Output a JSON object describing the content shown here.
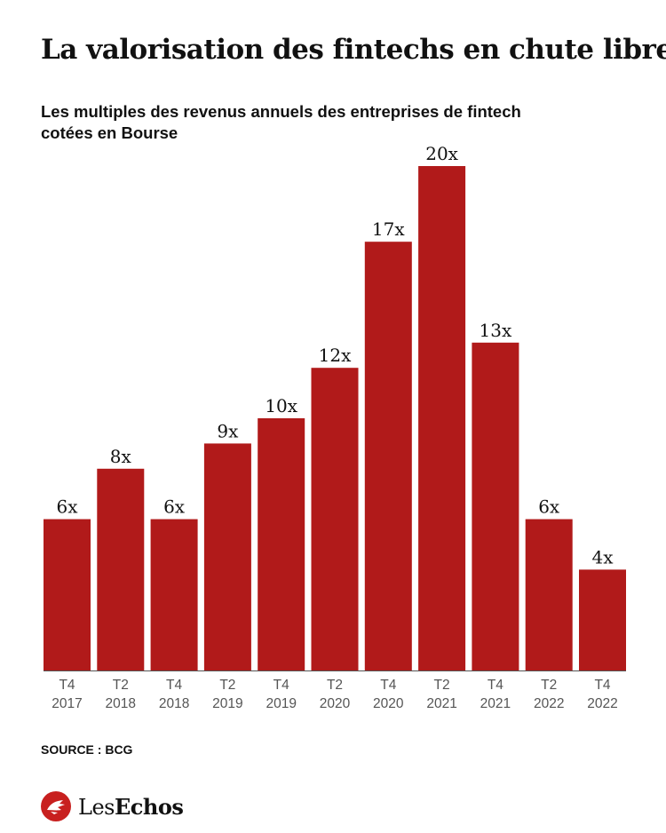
{
  "title": "La valorisation des fintechs en chute libre",
  "subtitle": "Les multiples des revenus annuels des entreprises de fintech cotées en Bourse",
  "source": "SOURCE : BCG",
  "logo": {
    "text": "LesEchos",
    "icon": "les-echos-bird-icon"
  },
  "colors": {
    "bar": "#b11a1a",
    "baseline": "#555555",
    "logo": "#c8201f"
  },
  "chart_data": {
    "type": "bar",
    "categories": [
      [
        "T4",
        "2017"
      ],
      [
        "T2",
        "2018"
      ],
      [
        "T4",
        "2018"
      ],
      [
        "T2",
        "2019"
      ],
      [
        "T4",
        "2019"
      ],
      [
        "T2",
        "2020"
      ],
      [
        "T4",
        "2020"
      ],
      [
        "T2",
        "2021"
      ],
      [
        "T4",
        "2021"
      ],
      [
        "T2",
        "2022"
      ],
      [
        "T4",
        "2022"
      ]
    ],
    "values": [
      6,
      8,
      6,
      9,
      10,
      12,
      17,
      20,
      13,
      6,
      4
    ],
    "data_labels": [
      "6x",
      "8x",
      "6x",
      "9x",
      "10x",
      "12x",
      "17x",
      "20x",
      "13x",
      "6x",
      "4x"
    ],
    "ylim": [
      0,
      20
    ],
    "grid": false
  }
}
